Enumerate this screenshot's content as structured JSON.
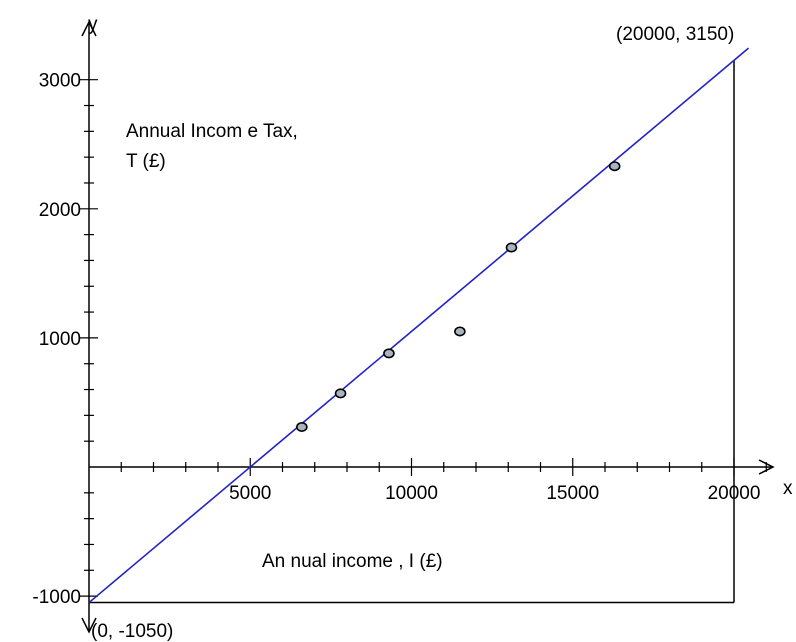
{
  "chart_data": {
    "type": "scatter",
    "x_axis": {
      "letter": "x",
      "ticks": [
        5000,
        10000,
        15000,
        20000
      ],
      "tick_labels": [
        "5000",
        "10000",
        "15000",
        "20000"
      ],
      "range": [
        0,
        21000
      ]
    },
    "y_axis": {
      "letter": "y",
      "ticks": [
        -1000,
        1000,
        2000,
        3000
      ],
      "tick_labels": [
        "-1000",
        "1000",
        "2000",
        "3000"
      ],
      "range": [
        -1000,
        3000
      ]
    },
    "ylabel_lines": [
      "Annual Incom e Tax,",
      "T (£)"
    ],
    "xlabel": "An nual income , I (£)",
    "points": [
      {
        "x": 6600,
        "y": 310
      },
      {
        "x": 7800,
        "y": 570
      },
      {
        "x": 9300,
        "y": 880
      },
      {
        "x": 11500,
        "y": 1050
      },
      {
        "x": 13100,
        "y": 1700
      },
      {
        "x": 16300,
        "y": 2330
      }
    ],
    "fit_line": {
      "x": [
        0,
        20000
      ],
      "y": [
        -1050,
        3150
      ],
      "color": "#2323c8"
    },
    "annotations": [
      {
        "text": "(20000, 3150)",
        "x": 20000,
        "y": 3150
      },
      {
        "text": "(0, -1050)",
        "x": 0,
        "y": -1050
      }
    ],
    "grid": false
  }
}
